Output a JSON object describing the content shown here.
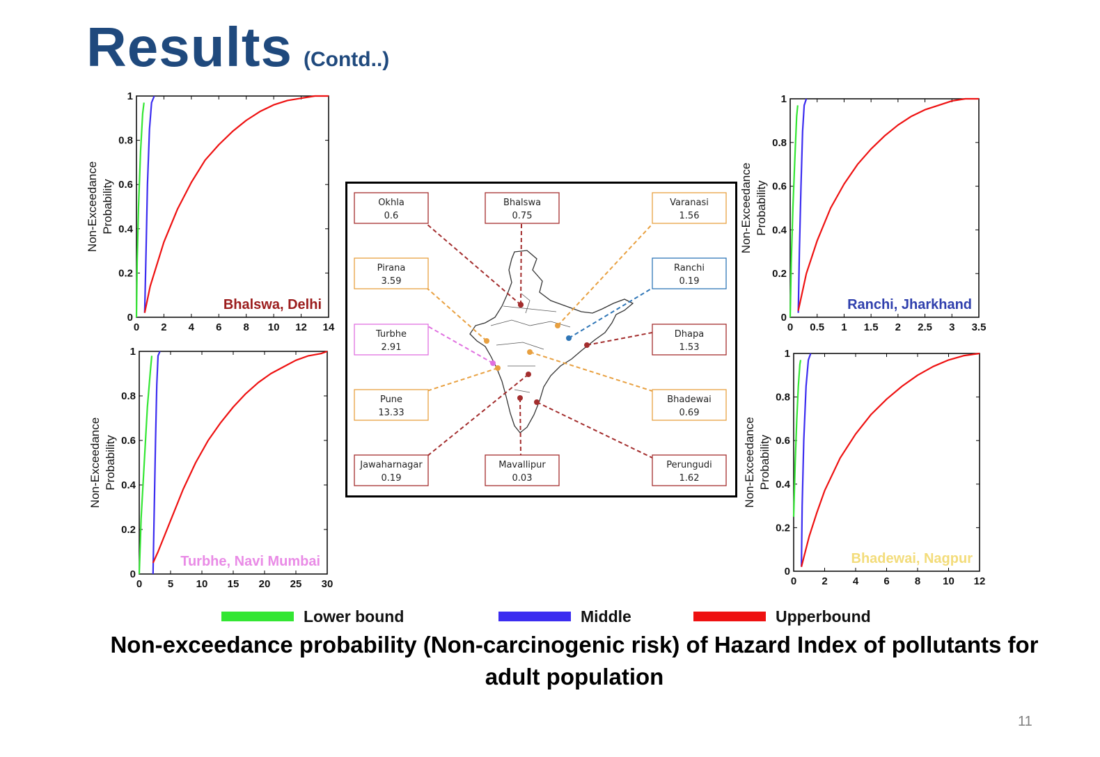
{
  "slide": {
    "title": "Results",
    "title_suffix": "(Contd..)",
    "caption": "Non-exceedance probability (Non-carcinogenic risk) of Hazard Index of pollutants for adult population",
    "page_number": "11"
  },
  "legend": [
    {
      "label": "Lower bound",
      "color": "#33e633"
    },
    {
      "label": "Middle",
      "color": "#3b2cf0"
    },
    {
      "label": "Upperbound",
      "color": "#ee1111"
    }
  ],
  "map": {
    "sites": [
      {
        "name": "Okhla",
        "value": "0.6",
        "color": "#a32d2d"
      },
      {
        "name": "Bhalswa",
        "value": "0.75",
        "color": "#a32d2d"
      },
      {
        "name": "Varanasi",
        "value": "1.56",
        "color": "#e8a040"
      },
      {
        "name": "Pirana",
        "value": "3.59",
        "color": "#e8a040"
      },
      {
        "name": "Ranchi",
        "value": "0.19",
        "color": "#2e75b6"
      },
      {
        "name": "Turbhe",
        "value": "2.91",
        "color": "#e070e0"
      },
      {
        "name": "Dhapa",
        "value": "1.53",
        "color": "#a32d2d"
      },
      {
        "name": "Pune",
        "value": "13.33",
        "color": "#e8a040"
      },
      {
        "name": "Bhadewai",
        "value": "0.69",
        "color": "#e8a040"
      },
      {
        "name": "Jawaharnagar",
        "value": "0.19",
        "color": "#a32d2d"
      },
      {
        "name": "Mavallipur",
        "value": "0.03",
        "color": "#a32d2d"
      },
      {
        "name": "Perungudi",
        "value": "1.62",
        "color": "#a32d2d"
      }
    ]
  },
  "chart_data": [
    {
      "type": "line",
      "annotation": "Bhalswa, Delhi",
      "annotation_color": "#9b1c1c",
      "ylabel": "Non-Exceedance Probability",
      "xlim": [
        0,
        14
      ],
      "xticks": [
        0,
        2,
        4,
        6,
        8,
        10,
        12,
        14
      ],
      "ylim": [
        0,
        1
      ],
      "yticks": [
        0,
        0.2,
        0.4,
        0.6,
        0.8,
        1
      ],
      "series": [
        {
          "name": "Lower bound",
          "x": [
            0,
            0.05,
            0.15,
            0.3,
            0.45,
            0.55
          ],
          "y": [
            0,
            0.25,
            0.5,
            0.75,
            0.92,
            0.97
          ]
        },
        {
          "name": "Middle",
          "x": [
            0.6,
            0.7,
            0.8,
            0.95,
            1.1,
            1.3
          ],
          "y": [
            0.02,
            0.3,
            0.6,
            0.85,
            0.97,
            1.0
          ]
        },
        {
          "name": "Upperbound",
          "x": [
            0.6,
            1,
            2,
            3,
            4,
            5,
            6,
            7,
            8,
            9,
            10,
            11,
            12,
            13,
            14
          ],
          "y": [
            0.02,
            0.14,
            0.34,
            0.49,
            0.61,
            0.71,
            0.78,
            0.84,
            0.89,
            0.93,
            0.96,
            0.98,
            0.99,
            1.0,
            1.0
          ]
        }
      ]
    },
    {
      "type": "line",
      "annotation": "Turbhe, Navi Mumbai",
      "annotation_color": "#e98be6",
      "ylabel": "Non-Exceedance Probability",
      "xlim": [
        0,
        30
      ],
      "xticks": [
        0,
        5,
        10,
        15,
        20,
        25,
        30
      ],
      "ylim": [
        0,
        1
      ],
      "yticks": [
        0,
        0.2,
        0.4,
        0.6,
        0.8,
        1
      ],
      "series": [
        {
          "name": "Lower bound",
          "x": [
            0,
            0.3,
            0.8,
            1.3,
            1.8,
            2.0
          ],
          "y": [
            0,
            0.25,
            0.5,
            0.75,
            0.92,
            0.98
          ]
        },
        {
          "name": "Middle",
          "x": [
            2.2,
            2.4,
            2.6,
            2.8,
            3.0,
            3.3
          ],
          "y": [
            0.0,
            0.3,
            0.6,
            0.85,
            0.98,
            1.0
          ]
        },
        {
          "name": "Upperbound",
          "x": [
            2.2,
            3,
            5,
            7,
            9,
            11,
            13,
            15,
            17,
            19,
            21,
            23,
            25,
            27,
            29,
            30
          ],
          "y": [
            0.05,
            0.1,
            0.24,
            0.38,
            0.5,
            0.6,
            0.68,
            0.75,
            0.81,
            0.86,
            0.9,
            0.93,
            0.96,
            0.98,
            0.99,
            1.0
          ]
        }
      ]
    },
    {
      "type": "line",
      "annotation": "Ranchi, Jharkhand",
      "annotation_color": "#2f3fad",
      "ylabel": "Non-Exceedance Probability",
      "xlim": [
        0,
        3.5
      ],
      "xticks": [
        0,
        0.5,
        1,
        1.5,
        2,
        2.5,
        3,
        3.5
      ],
      "ylim": [
        0,
        1
      ],
      "yticks": [
        0,
        0.2,
        0.4,
        0.6,
        0.8,
        1
      ],
      "series": [
        {
          "name": "Lower bound",
          "x": [
            0,
            0.02,
            0.05,
            0.09,
            0.12,
            0.14
          ],
          "y": [
            0,
            0.25,
            0.5,
            0.75,
            0.92,
            0.97
          ]
        },
        {
          "name": "Middle",
          "x": [
            0.15,
            0.17,
            0.2,
            0.23,
            0.26,
            0.3
          ],
          "y": [
            0.02,
            0.3,
            0.6,
            0.85,
            0.97,
            1.0
          ]
        },
        {
          "name": "Upperbound",
          "x": [
            0.15,
            0.3,
            0.5,
            0.75,
            1,
            1.25,
            1.5,
            1.75,
            2,
            2.25,
            2.5,
            2.75,
            3,
            3.25,
            3.5
          ],
          "y": [
            0.03,
            0.2,
            0.35,
            0.5,
            0.61,
            0.7,
            0.77,
            0.83,
            0.88,
            0.92,
            0.95,
            0.97,
            0.99,
            1.0,
            1.0
          ]
        }
      ]
    },
    {
      "type": "line",
      "annotation": "Bhadewai, Nagpur",
      "annotation_color": "#f3dc7a",
      "ylabel": "Non-Exceedance Probability",
      "xlim": [
        0,
        12
      ],
      "xticks": [
        0,
        2,
        4,
        6,
        8,
        10,
        12
      ],
      "ylim": [
        0,
        1
      ],
      "yticks": [
        0,
        0.2,
        0.4,
        0.6,
        0.8,
        1
      ],
      "series": [
        {
          "name": "Lower bound",
          "x": [
            0,
            0.1,
            0.2,
            0.3,
            0.4,
            0.45
          ],
          "y": [
            0.25,
            0.5,
            0.7,
            0.85,
            0.95,
            0.97
          ]
        },
        {
          "name": "Middle",
          "x": [
            0.5,
            0.55,
            0.65,
            0.8,
            0.95,
            1.1
          ],
          "y": [
            0.02,
            0.3,
            0.6,
            0.85,
            0.97,
            1.0
          ]
        },
        {
          "name": "Upperbound",
          "x": [
            0.5,
            1,
            1.5,
            2,
            3,
            4,
            5,
            6,
            7,
            8,
            9,
            10,
            11,
            12
          ],
          "y": [
            0.02,
            0.16,
            0.27,
            0.37,
            0.52,
            0.63,
            0.72,
            0.79,
            0.85,
            0.9,
            0.94,
            0.97,
            0.99,
            1.0
          ]
        }
      ]
    }
  ]
}
